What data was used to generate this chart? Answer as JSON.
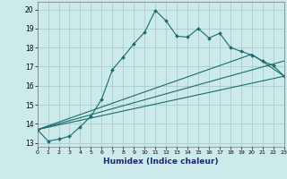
{
  "title": "",
  "xlabel": "Humidex (Indice chaleur)",
  "bg_color": "#cceaea",
  "grid_color": "#aacccc",
  "line_color": "#1a6b6b",
  "xlim": [
    0,
    23
  ],
  "ylim": [
    12.8,
    20.4
  ],
  "yticks": [
    13,
    14,
    15,
    16,
    17,
    18,
    19,
    20
  ],
  "xticks": [
    0,
    1,
    2,
    3,
    4,
    5,
    6,
    7,
    8,
    9,
    10,
    11,
    12,
    13,
    14,
    15,
    16,
    17,
    18,
    19,
    20,
    21,
    22,
    23
  ],
  "line1_x": [
    0,
    1,
    2,
    3,
    4,
    5,
    6,
    7,
    8,
    9,
    10,
    11,
    12,
    13,
    14,
    15,
    16,
    17,
    18,
    19,
    20,
    21,
    22,
    23
  ],
  "line1_y": [
    13.7,
    13.1,
    13.2,
    13.35,
    13.85,
    14.4,
    15.3,
    16.85,
    17.5,
    18.2,
    18.8,
    19.95,
    19.4,
    18.6,
    18.55,
    19.0,
    18.5,
    18.75,
    18.0,
    17.8,
    17.6,
    17.3,
    17.05,
    16.5
  ],
  "line2_x": [
    0,
    23
  ],
  "line2_y": [
    13.7,
    16.5
  ],
  "line3_x": [
    0,
    23
  ],
  "line3_y": [
    13.7,
    17.3
  ],
  "line4_x": [
    0,
    20,
    23
  ],
  "line4_y": [
    13.7,
    17.65,
    16.5
  ]
}
